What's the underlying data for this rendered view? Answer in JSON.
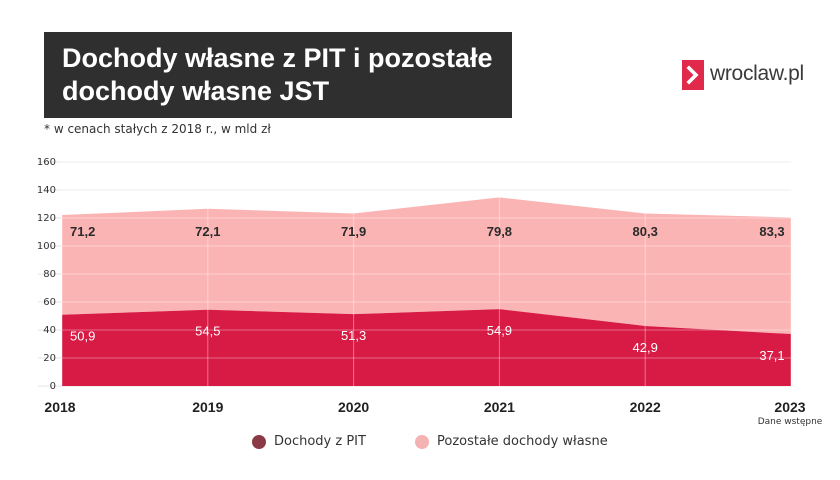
{
  "header": {
    "title_line1": "Dochody własne z PIT i pozostałe",
    "title_line2": "dochody własne JST",
    "subtitle": "* w cenach stałych z 2018 r., w mld zł"
  },
  "logo": {
    "text": "wroclaw.pl",
    "icon": "chevron-right-icon",
    "color": "#e1294b"
  },
  "chart_data": {
    "type": "area",
    "stacked": true,
    "x": [
      "2018",
      "2019",
      "2020",
      "2021",
      "2022",
      "2023"
    ],
    "x_note": {
      "category": "2023",
      "text": "Dane wstępne"
    },
    "series": [
      {
        "name": "Dochody z PIT",
        "values": [
          50.9,
          54.5,
          51.3,
          54.9,
          42.9,
          37.1
        ],
        "color": "#d81b45",
        "legend_color": "#8b3a45"
      },
      {
        "name": "Pozostałe dochody własne",
        "values": [
          71.2,
          72.1,
          71.9,
          79.8,
          80.3,
          83.3
        ],
        "color": "#fbb4b4",
        "legend_color": "#f4b2b2"
      }
    ],
    "ylim": [
      0,
      160
    ],
    "yticks": [
      0,
      20,
      40,
      60,
      80,
      100,
      120,
      140,
      160
    ],
    "data_labels": {
      "Dochody z PIT": [
        "50,9",
        "54,5",
        "51,3",
        "54,9",
        "42,9",
        "37,1"
      ],
      "Pozostałe dochody własne": [
        "71,2",
        "72,1",
        "71,9",
        "79,8",
        "80,3",
        "83,3"
      ]
    },
    "grid": true,
    "legend_position": "bottom"
  }
}
